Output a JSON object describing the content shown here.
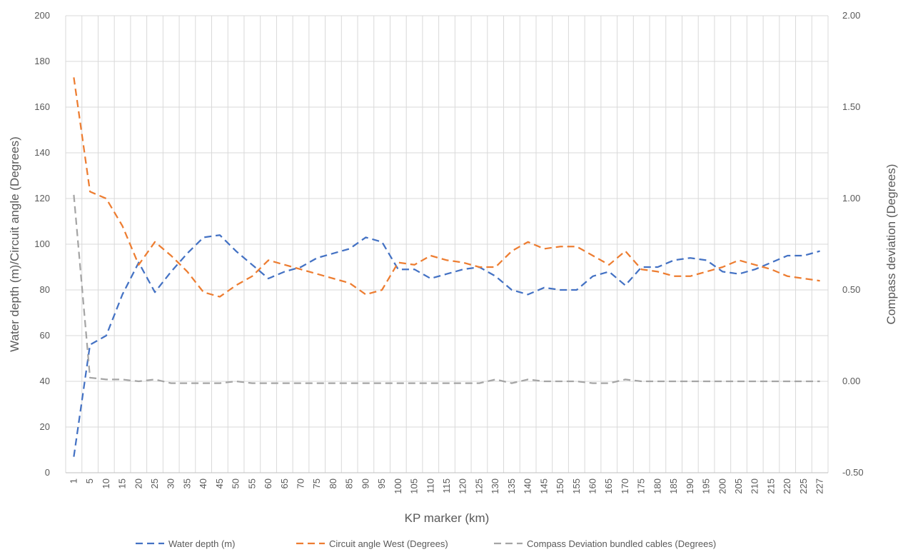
{
  "chart_data": {
    "type": "line",
    "title": "",
    "xlabel": "KP marker (km)",
    "ylabel": "Water depth (m)/Circuit angle (Degrees)",
    "y2label": "Compass deviation (Degrees)",
    "categories": [
      "1",
      "5",
      "10",
      "15",
      "20",
      "25",
      "30",
      "35",
      "40",
      "45",
      "50",
      "55",
      "60",
      "65",
      "70",
      "75",
      "80",
      "85",
      "90",
      "95",
      "100",
      "105",
      "110",
      "115",
      "120",
      "125",
      "130",
      "135",
      "140",
      "145",
      "150",
      "155",
      "160",
      "165",
      "170",
      "175",
      "180",
      "185",
      "190",
      "195",
      "200",
      "205",
      "210",
      "215",
      "220",
      "225",
      "227"
    ],
    "ylim": [
      0,
      200
    ],
    "yticks": [
      "0",
      "20",
      "40",
      "60",
      "80",
      "100",
      "120",
      "140",
      "160",
      "180",
      "200"
    ],
    "y2lim": [
      -0.5,
      2.0
    ],
    "y2ticks": [
      "-0.50",
      "0.00",
      "0.50",
      "1.00",
      "1.50",
      "2.00"
    ],
    "grid": true,
    "legend_position": "bottom",
    "series": [
      {
        "name": "Water depth (m)",
        "axis": "left",
        "color": "#4472c4",
        "dash": "dashed",
        "values": [
          7,
          56,
          60,
          78,
          92,
          79,
          88,
          96,
          103,
          104,
          97,
          91,
          85,
          88,
          90,
          94,
          96,
          98,
          103,
          101,
          89,
          89,
          85,
          87,
          89,
          90,
          86,
          80,
          78,
          81,
          80,
          80,
          86,
          88,
          82,
          90,
          90,
          93,
          94,
          93,
          88,
          87,
          89,
          92,
          95,
          95,
          97
        ]
      },
      {
        "name": "Circuit angle West (Degrees)",
        "axis": "left",
        "color": "#ed7d31",
        "dash": "dashed",
        "values": [
          173,
          123,
          120,
          108,
          91,
          101,
          95,
          88,
          79,
          77,
          82,
          86,
          93,
          91,
          89,
          87,
          85,
          83,
          78,
          80,
          92,
          91,
          95,
          93,
          92,
          90,
          90,
          97,
          101,
          98,
          99,
          99,
          95,
          91,
          97,
          89,
          88,
          86,
          86,
          88,
          90,
          93,
          91,
          89,
          86,
          85,
          84
        ]
      },
      {
        "name": "Compass Deviation bundled cables (Degrees)",
        "axis": "right",
        "color": "#a5a5a5",
        "dash": "dashed",
        "values": [
          1.02,
          0.02,
          0.01,
          0.01,
          0.0,
          0.01,
          -0.01,
          -0.01,
          -0.01,
          -0.01,
          0.0,
          -0.01,
          -0.01,
          -0.01,
          -0.01,
          -0.01,
          -0.01,
          -0.01,
          -0.01,
          -0.01,
          -0.01,
          -0.01,
          -0.01,
          -0.01,
          -0.01,
          -0.01,
          0.01,
          -0.01,
          0.01,
          0.0,
          0.0,
          0.0,
          -0.01,
          -0.01,
          0.01,
          0.0,
          0.0,
          0.0,
          0.0,
          0.0,
          0.0,
          0.0,
          0.0,
          0.0,
          0.0,
          0.0,
          0.0
        ]
      }
    ]
  }
}
